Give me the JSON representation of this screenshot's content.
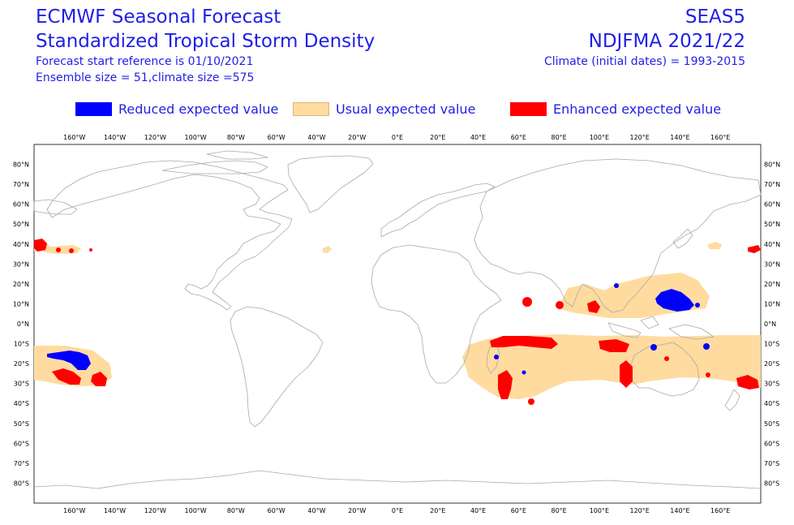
{
  "header": {
    "title_line1": "ECMWF Seasonal Forecast",
    "title_line2": "Standardized Tropical Storm Density",
    "start_reference": "Forecast start reference is 01/10/2021",
    "ensemble": "Ensemble size = 51,climate size =575",
    "system": "SEAS5",
    "period": "NDJFMA 2021/22",
    "climate": "Climate (initial dates) = 1993-2015"
  },
  "legend": [
    {
      "label": "Reduced expected value",
      "color": "#0000ff"
    },
    {
      "label": "Usual expected value",
      "color": "#ffdba0"
    },
    {
      "label": "Enhanced expected value",
      "color": "#ff0000"
    }
  ],
  "map": {
    "projection": "equirectangular",
    "lon_range": [
      -180,
      180
    ],
    "lat_range": [
      -90,
      90
    ],
    "lon_labels": [
      "160°W",
      "140°W",
      "120°W",
      "100°W",
      "80°W",
      "60°W",
      "40°W",
      "20°W",
      "0°E",
      "20°E",
      "40°E",
      "60°E",
      "80°E",
      "100°E",
      "120°E",
      "140°E",
      "160°E"
    ],
    "lat_labels": [
      "80°N",
      "70°N",
      "60°N",
      "50°N",
      "40°N",
      "30°N",
      "20°N",
      "10°N",
      "0°N",
      "10°S",
      "20°S",
      "30°S",
      "40°S",
      "50°S",
      "60°S",
      "70°S",
      "80°S"
    ],
    "colors": {
      "usual": "#ffdba0",
      "reduced": "#0000ff",
      "enhanced": "#ff0000",
      "coast": "#a9a9a9"
    }
  }
}
